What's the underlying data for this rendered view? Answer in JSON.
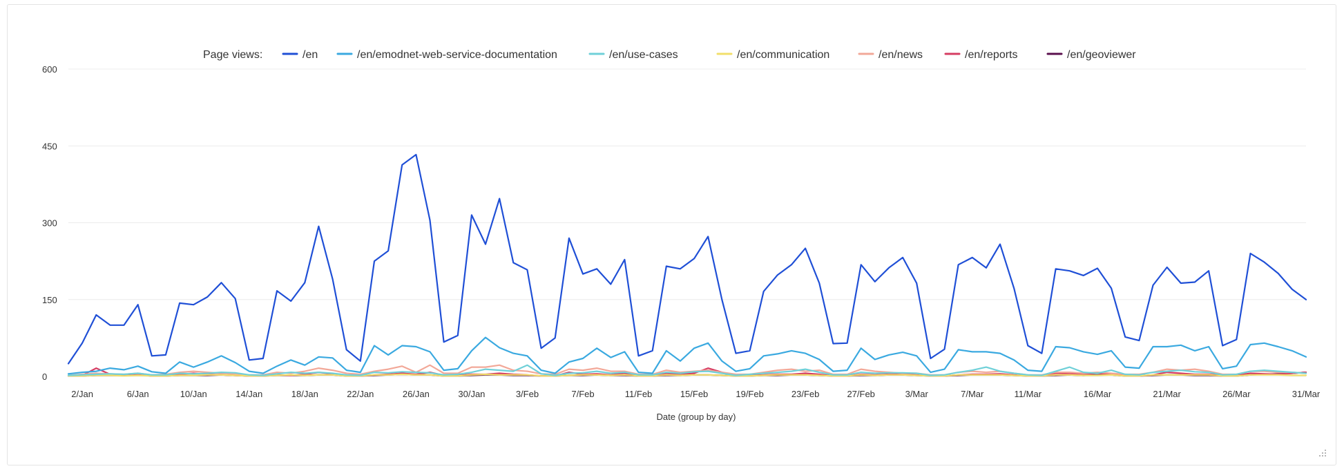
{
  "chart_data": {
    "type": "line",
    "legend_title": "Page views:",
    "legend_position": "top",
    "xlabel": "Date (group by day)",
    "ylabel": "",
    "ylim": [
      0,
      600
    ],
    "yticks": [
      0,
      150,
      300,
      450,
      600
    ],
    "grid": true,
    "x_tick_labels": [
      "2/Jan",
      "6/Jan",
      "10/Jan",
      "14/Jan",
      "18/Jan",
      "22/Jan",
      "26/Jan",
      "30/Jan",
      "3/Feb",
      "7/Feb",
      "11/Feb",
      "15/Feb",
      "19/Feb",
      "23/Feb",
      "27/Feb",
      "3/Mar",
      "7/Mar",
      "11/Mar",
      "16/Mar",
      "21/Mar",
      "26/Mar",
      "31/Mar"
    ],
    "x_tick_day_index": [
      1,
      5,
      9,
      13,
      17,
      21,
      25,
      29,
      33,
      37,
      41,
      45,
      49,
      53,
      57,
      61,
      65,
      69,
      74,
      79,
      84,
      89
    ],
    "x_range_days": [
      0,
      89
    ],
    "series": [
      {
        "name": "/en",
        "color": "#1f4fd6",
        "values": [
          25,
          65,
          120,
          100,
          100,
          140,
          40,
          42,
          143,
          140,
          155,
          183,
          152,
          32,
          35,
          167,
          147,
          183,
          293,
          190,
          52,
          30,
          225,
          245,
          413,
          433,
          305,
          67,
          80,
          315,
          258,
          347,
          222,
          208,
          55,
          75,
          270,
          200,
          210,
          180,
          228,
          40,
          50,
          215,
          210,
          230,
          273,
          150,
          45,
          50,
          166,
          198,
          218,
          250,
          182,
          64,
          65,
          218,
          185,
          212,
          232,
          182,
          35,
          53,
          218,
          232,
          212,
          258,
          172,
          60,
          45,
          210,
          206,
          197,
          211,
          172,
          77,
          70,
          178,
          213,
          182,
          184,
          206,
          60,
          72,
          240,
          223,
          201,
          170,
          150
        ]
      },
      {
        "name": "/en/emodnet-web-service-documentation",
        "color": "#3aa9e0",
        "values": [
          5,
          8,
          10,
          16,
          13,
          20,
          9,
          6,
          28,
          18,
          28,
          40,
          27,
          10,
          6,
          20,
          32,
          22,
          38,
          36,
          12,
          8,
          60,
          42,
          60,
          58,
          48,
          12,
          15,
          50,
          76,
          56,
          45,
          40,
          12,
          6,
          28,
          35,
          55,
          37,
          48,
          8,
          6,
          50,
          30,
          55,
          65,
          30,
          10,
          15,
          40,
          44,
          50,
          45,
          33,
          10,
          12,
          55,
          33,
          42,
          47,
          40,
          8,
          14,
          52,
          48,
          48,
          45,
          32,
          12,
          10,
          58,
          56,
          48,
          43,
          50,
          18,
          16,
          58,
          58,
          61,
          50,
          58,
          15,
          20,
          62,
          65,
          58,
          50,
          38
        ]
      },
      {
        "name": "/en/use-cases",
        "color": "#6fd0d8",
        "values": [
          2,
          3,
          4,
          5,
          4,
          6,
          3,
          3,
          6,
          5,
          6,
          8,
          7,
          3,
          2,
          5,
          8,
          6,
          8,
          6,
          3,
          2,
          8,
          7,
          9,
          8,
          7,
          3,
          4,
          8,
          14,
          12,
          10,
          22,
          5,
          2,
          6,
          7,
          10,
          6,
          8,
          3,
          3,
          8,
          6,
          9,
          10,
          6,
          2,
          4,
          6,
          8,
          10,
          14,
          8,
          3,
          3,
          8,
          6,
          7,
          7,
          6,
          2,
          3,
          8,
          12,
          18,
          10,
          6,
          3,
          2,
          10,
          18,
          8,
          6,
          12,
          4,
          3,
          8,
          10,
          12,
          9,
          8,
          3,
          4,
          10,
          12,
          10,
          8,
          6
        ]
      },
      {
        "name": "/en/communication",
        "color": "#f2df6a",
        "values": [
          1,
          1,
          2,
          2,
          1,
          2,
          1,
          1,
          2,
          2,
          3,
          3,
          2,
          1,
          1,
          2,
          3,
          2,
          3,
          3,
          1,
          1,
          3,
          3,
          4,
          3,
          3,
          1,
          1,
          3,
          4,
          3,
          3,
          3,
          1,
          1,
          2,
          3,
          3,
          2,
          3,
          1,
          1,
          3,
          2,
          3,
          3,
          2,
          1,
          1,
          2,
          3,
          3,
          3,
          2,
          1,
          1,
          3,
          2,
          3,
          3,
          2,
          1,
          1,
          3,
          3,
          3,
          3,
          2,
          1,
          1,
          3,
          3,
          2,
          2,
          3,
          1,
          1,
          3,
          3,
          3,
          3,
          3,
          1,
          1,
          3,
          3,
          3,
          2,
          2
        ]
      },
      {
        "name": "/en/news",
        "color": "#f2a898",
        "values": [
          2,
          4,
          6,
          5,
          4,
          6,
          3,
          4,
          8,
          10,
          8,
          6,
          5,
          3,
          3,
          8,
          6,
          10,
          16,
          12,
          6,
          4,
          10,
          14,
          20,
          8,
          22,
          6,
          6,
          18,
          18,
          22,
          12,
          10,
          5,
          4,
          14,
          12,
          16,
          10,
          10,
          4,
          4,
          12,
          8,
          10,
          12,
          8,
          4,
          4,
          8,
          12,
          14,
          10,
          12,
          4,
          4,
          14,
          10,
          8,
          6,
          6,
          3,
          3,
          8,
          10,
          8,
          10,
          6,
          3,
          3,
          8,
          8,
          6,
          8,
          6,
          4,
          4,
          8,
          14,
          12,
          14,
          10,
          4,
          4,
          10,
          10,
          8,
          8,
          6
        ]
      },
      {
        "name": "/en/reports",
        "color": "#d63c62",
        "values": [
          1,
          2,
          16,
          4,
          2,
          3,
          1,
          2,
          4,
          6,
          4,
          3,
          2,
          1,
          1,
          3,
          2,
          4,
          8,
          5,
          2,
          1,
          3,
          4,
          6,
          4,
          8,
          2,
          2,
          4,
          4,
          6,
          4,
          3,
          1,
          1,
          8,
          4,
          5,
          3,
          6,
          1,
          1,
          5,
          4,
          6,
          16,
          8,
          2,
          2,
          3,
          4,
          4,
          6,
          4,
          1,
          1,
          4,
          3,
          4,
          4,
          3,
          1,
          1,
          3,
          4,
          4,
          5,
          3,
          1,
          1,
          6,
          5,
          4,
          6,
          4,
          2,
          1,
          3,
          8,
          6,
          4,
          4,
          2,
          2,
          6,
          5,
          4,
          6,
          8
        ]
      },
      {
        "name": "/en/geoviewer",
        "color": "#5a0f4d",
        "values": [
          1,
          1,
          2,
          2,
          2,
          3,
          1,
          1,
          2,
          2,
          2,
          3,
          2,
          1,
          1,
          2,
          2,
          2,
          3,
          3,
          1,
          1,
          2,
          3,
          4,
          3,
          3,
          1,
          1,
          2,
          3,
          3,
          2,
          2,
          1,
          1,
          2,
          2,
          3,
          2,
          2,
          1,
          1,
          2,
          2,
          3,
          3,
          2,
          1,
          1,
          2,
          2,
          3,
          3,
          2,
          1,
          1,
          2,
          2,
          3,
          3,
          2,
          1,
          1,
          2,
          3,
          3,
          3,
          2,
          1,
          1,
          2,
          3,
          2,
          3,
          3,
          1,
          1,
          2,
          3,
          3,
          2,
          2,
          1,
          1,
          3,
          4,
          5,
          6,
          8
        ]
      }
    ]
  }
}
